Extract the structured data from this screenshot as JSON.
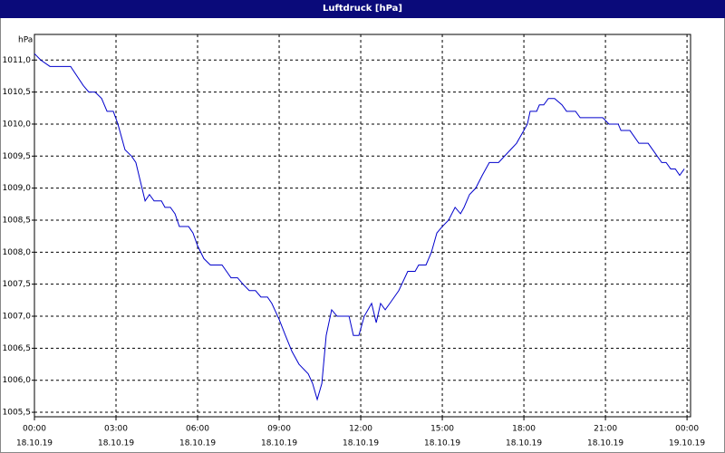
{
  "chart_data": {
    "type": "line",
    "title": "Luftdruck [hPa]",
    "y_label": "hPa",
    "color": "#0000cc",
    "grid": true,
    "xlim": [
      0,
      24.13
    ],
    "ylim": [
      1005.43,
      1011.4
    ],
    "xticks": [
      {
        "value": 0,
        "label": "00:00"
      },
      {
        "value": 3,
        "label": "03:00"
      },
      {
        "value": 6,
        "label": "06:00"
      },
      {
        "value": 9,
        "label": "09:00"
      },
      {
        "value": 12,
        "label": "12:00"
      },
      {
        "value": 15,
        "label": "15:00"
      },
      {
        "value": 18,
        "label": "18:00"
      },
      {
        "value": 21,
        "label": "21:00"
      },
      {
        "value": 24,
        "label": "00:00"
      }
    ],
    "xtick_dates": [
      "18.10.19",
      "18.10.19",
      "18.10.19",
      "18.10.19",
      "18.10.19",
      "18.10.19",
      "18.10.19",
      "18.10.19",
      "19.10.19"
    ],
    "yticks": [
      {
        "value": 1005.5,
        "label": "1005,5"
      },
      {
        "value": 1006,
        "label": "1006,0"
      },
      {
        "value": 1006.5,
        "label": "1006,5"
      },
      {
        "value": 1007,
        "label": "1007,0"
      },
      {
        "value": 1007.5,
        "label": "1007,5"
      },
      {
        "value": 1008,
        "label": "1008,0"
      },
      {
        "value": 1008.5,
        "label": "1008,5"
      },
      {
        "value": 1009,
        "label": "1009,0"
      },
      {
        "value": 1009.5,
        "label": "1009,5"
      },
      {
        "value": 1010,
        "label": "1010,0"
      },
      {
        "value": 1010.5,
        "label": "1010,5"
      },
      {
        "value": 1011,
        "label": "1011,0"
      }
    ],
    "x": [
      0,
      0.23,
      0.57,
      1.33,
      1.8,
      2.0,
      2.23,
      2.47,
      2.67,
      2.9,
      3.07,
      3.33,
      3.57,
      3.73,
      3.9,
      4.07,
      4.23,
      4.4,
      4.67,
      4.8,
      5.0,
      5.17,
      5.33,
      5.67,
      5.83,
      6.0,
      6.23,
      6.47,
      6.9,
      7.23,
      7.47,
      7.67,
      7.9,
      8.13,
      8.33,
      8.57,
      8.73,
      9.0,
      9.23,
      9.47,
      9.73,
      10.07,
      10.23,
      10.4,
      10.57,
      10.73,
      10.93,
      11.13,
      11.57,
      11.73,
      11.93,
      12.13,
      12.4,
      12.57,
      12.73,
      12.9,
      13.07,
      13.4,
      13.73,
      14.0,
      14.13,
      14.4,
      14.6,
      14.8,
      15.0,
      15.23,
      15.47,
      15.67,
      15.8,
      16.0,
      16.23,
      16.47,
      16.73,
      17.07,
      17.4,
      17.73,
      18.13,
      18.23,
      18.47,
      18.57,
      18.73,
      18.9,
      19.13,
      19.4,
      19.57,
      19.9,
      20.07,
      20.9,
      21.13,
      21.47,
      21.57,
      21.9,
      22.23,
      22.57,
      23.07,
      23.23,
      23.4,
      23.57,
      23.73,
      23.9
    ],
    "values": [
      1011.1,
      1011.0,
      1010.9,
      1010.9,
      1010.6,
      1010.5,
      1010.5,
      1010.4,
      1010.2,
      1010.2,
      1010.0,
      1009.6,
      1009.5,
      1009.4,
      1009.1,
      1008.8,
      1008.9,
      1008.8,
      1008.8,
      1008.7,
      1008.7,
      1008.6,
      1008.4,
      1008.4,
      1008.3,
      1008.1,
      1007.9,
      1007.8,
      1007.8,
      1007.6,
      1007.6,
      1007.5,
      1007.4,
      1007.4,
      1007.3,
      1007.3,
      1007.2,
      1006.95,
      1006.7,
      1006.45,
      1006.25,
      1006.1,
      1005.95,
      1005.7,
      1005.95,
      1006.7,
      1007.1,
      1007.0,
      1007.0,
      1006.7,
      1006.7,
      1007.0,
      1007.2,
      1006.9,
      1007.2,
      1007.1,
      1007.2,
      1007.4,
      1007.7,
      1007.7,
      1007.8,
      1007.8,
      1008.0,
      1008.3,
      1008.4,
      1008.5,
      1008.7,
      1008.6,
      1008.7,
      1008.9,
      1009.0,
      1009.2,
      1009.4,
      1009.4,
      1009.55,
      1009.7,
      1010.0,
      1010.2,
      1010.2,
      1010.3,
      1010.3,
      1010.4,
      1010.4,
      1010.3,
      1010.2,
      1010.2,
      1010.1,
      1010.1,
      1010.0,
      1010.0,
      1009.9,
      1009.9,
      1009.7,
      1009.7,
      1009.4,
      1009.4,
      1009.3,
      1009.3,
      1009.2,
      1009.3
    ]
  }
}
